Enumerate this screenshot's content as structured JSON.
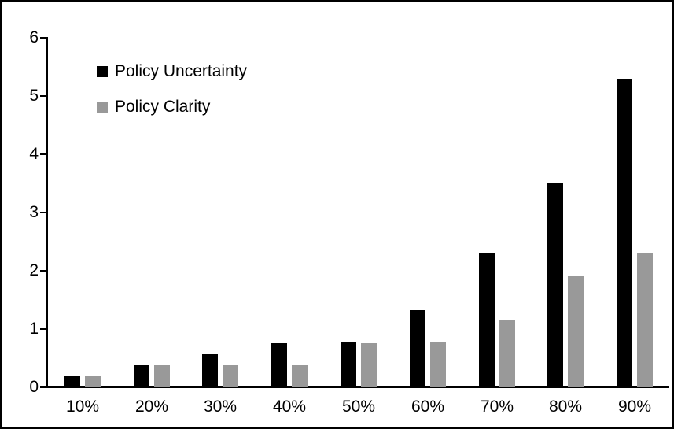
{
  "chart_data": {
    "type": "bar",
    "title": "",
    "xlabel": "",
    "ylabel": "",
    "categories": [
      "10%",
      "20%",
      "30%",
      "40%",
      "50%",
      "60%",
      "70%",
      "80%",
      "90%"
    ],
    "series": [
      {
        "name": "Policy Uncertainty",
        "color": "#000000",
        "values": [
          0.19,
          0.38,
          0.57,
          0.76,
          0.77,
          1.33,
          2.3,
          3.5,
          5.3
        ]
      },
      {
        "name": "Policy Clarity",
        "color": "#999999",
        "values": [
          0.19,
          0.38,
          0.38,
          0.38,
          0.76,
          0.77,
          1.15,
          1.9,
          2.3
        ]
      }
    ],
    "ylim": [
      0,
      6
    ],
    "y_ticks": [
      "0",
      "1",
      "2",
      "3",
      "4",
      "5",
      "6"
    ],
    "grid": "off",
    "legend_position": "inside-top-left"
  },
  "frame": {
    "background": "#ffffff",
    "border_color": "#000000",
    "axis_color": "#000000",
    "text_color": "#000000"
  }
}
